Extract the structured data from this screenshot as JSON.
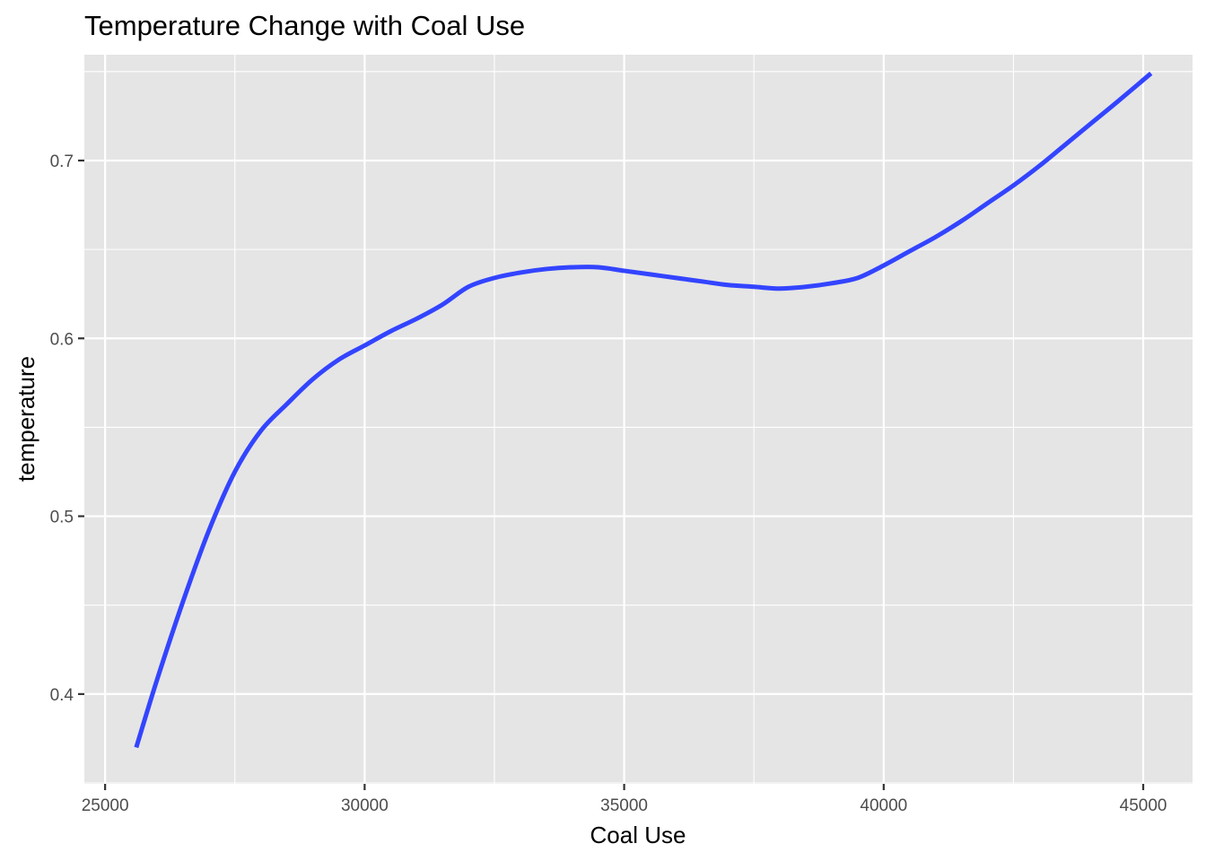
{
  "chart_data": {
    "type": "line",
    "title": "Temperature Change with Coal Use",
    "xlabel": "Coal Use",
    "ylabel": "temperature",
    "xlim": [
      24600,
      45950
    ],
    "ylim": [
      0.3495,
      0.7595
    ],
    "x_ticks": [
      25000,
      30000,
      35000,
      40000,
      45000
    ],
    "x_tick_labels": [
      "25000",
      "30000",
      "35000",
      "40000",
      "45000"
    ],
    "y_ticks": [
      0.4,
      0.5,
      0.6,
      0.7
    ],
    "y_tick_labels": [
      "0.4",
      "0.5",
      "0.6",
      "0.7"
    ],
    "grid": true,
    "legend": "none",
    "colors": {
      "line": "#3344ff",
      "panel": "#e5e5e5",
      "grid": "#ffffff"
    },
    "series": [
      {
        "x": [
          25600,
          26000,
          26500,
          27000,
          27500,
          28000,
          28500,
          29000,
          29500,
          30000,
          30500,
          31000,
          31500,
          32000,
          32500,
          33000,
          33500,
          34000,
          34500,
          35000,
          35500,
          36000,
          36500,
          37000,
          37500,
          38000,
          38500,
          39000,
          39500,
          40000,
          40500,
          41000,
          41500,
          42000,
          42500,
          43000,
          43500,
          44000,
          44500,
          45150
        ],
        "y": [
          0.37,
          0.408,
          0.452,
          0.492,
          0.525,
          0.548,
          0.563,
          0.577,
          0.588,
          0.596,
          0.604,
          0.611,
          0.619,
          0.629,
          0.634,
          0.637,
          0.639,
          0.64,
          0.64,
          0.638,
          0.636,
          0.634,
          0.632,
          0.63,
          0.629,
          0.628,
          0.629,
          0.631,
          0.634,
          0.641,
          0.649,
          0.657,
          0.666,
          0.676,
          0.686,
          0.697,
          0.709,
          0.721,
          0.733,
          0.749
        ]
      }
    ]
  }
}
